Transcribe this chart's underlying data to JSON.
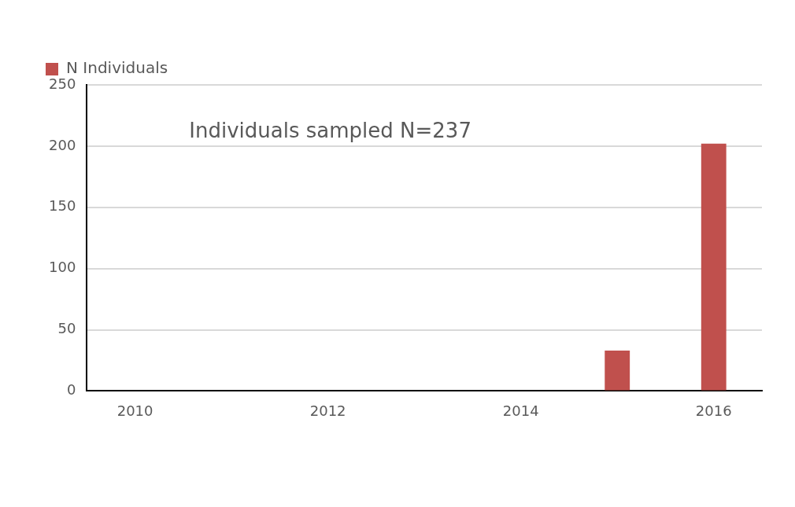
{
  "chart_data": {
    "type": "bar",
    "categories": [
      "2010",
      null,
      "2012",
      null,
      "2014",
      null,
      "2016"
    ],
    "series": [
      {
        "name": "N Individuals",
        "color": "#c0504d",
        "values": [
          0,
          0,
          0,
          0,
          0,
          33,
          202
        ]
      }
    ],
    "ylim": [
      0,
      250
    ],
    "yticks": [
      0,
      50,
      100,
      150,
      200,
      250
    ],
    "grid": "y",
    "legend": "top left",
    "annotations": [
      "Individuals sampled N=237"
    ]
  }
}
